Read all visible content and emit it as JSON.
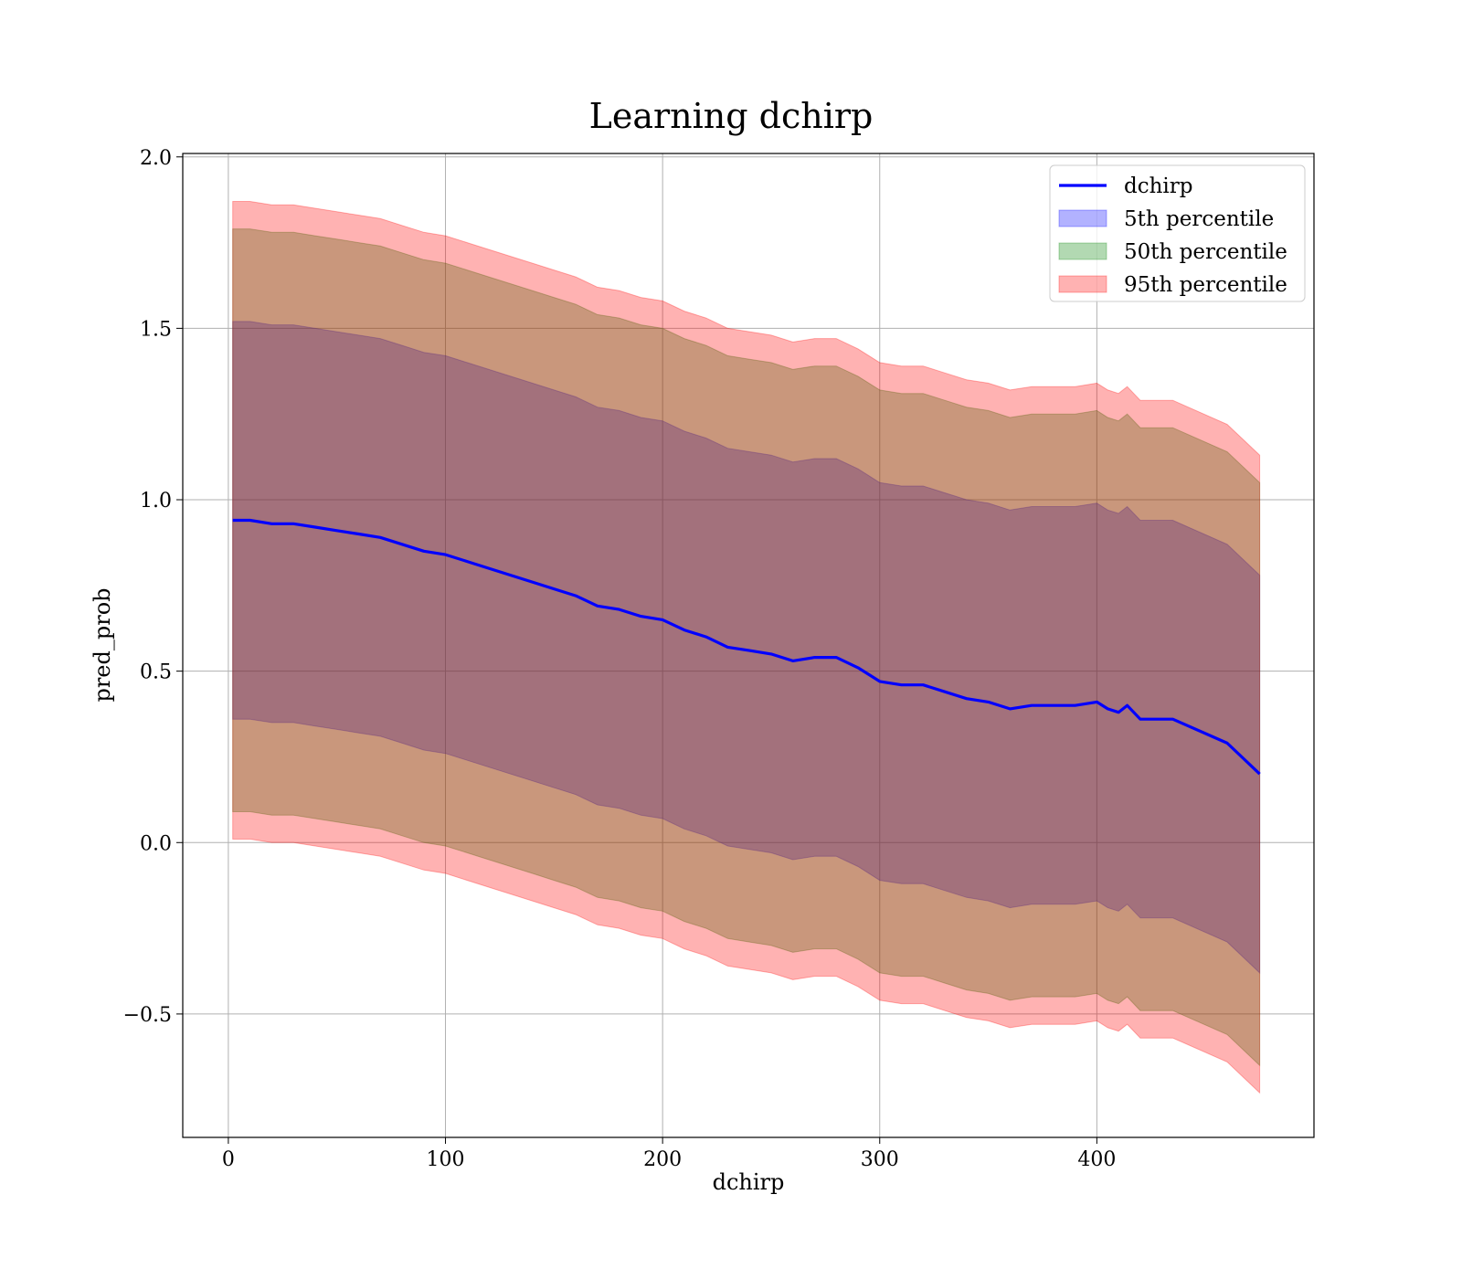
{
  "chart_data": {
    "type": "line",
    "title": "Learning dchirp",
    "xlabel": "dchirp",
    "ylabel": "pred_prob",
    "xlim": [
      -21,
      500
    ],
    "ylim": [
      -0.86,
      2.01
    ],
    "xticks": [
      0,
      100,
      200,
      300,
      400
    ],
    "xtick_labels": [
      "0",
      "100",
      "200",
      "300",
      "400"
    ],
    "yticks": [
      -0.5,
      0.0,
      0.5,
      1.0,
      1.5,
      2.0
    ],
    "ytick_labels": [
      "−0.5",
      "0.0",
      "0.5",
      "1.0",
      "1.5",
      "2.0"
    ],
    "grid": true,
    "legend_position": "top-right",
    "x": [
      2,
      10,
      20,
      30,
      40,
      50,
      60,
      70,
      80,
      90,
      100,
      110,
      120,
      130,
      140,
      150,
      160,
      170,
      180,
      190,
      200,
      210,
      220,
      230,
      240,
      250,
      260,
      270,
      280,
      290,
      300,
      310,
      320,
      330,
      340,
      350,
      360,
      370,
      380,
      390,
      400,
      405,
      410,
      414,
      420,
      425,
      435,
      460,
      475
    ],
    "series": [
      {
        "name": "dchirp",
        "kind": "line",
        "color": "#0000ff",
        "values": [
          0.94,
          0.94,
          0.93,
          0.93,
          0.92,
          0.91,
          0.9,
          0.89,
          0.87,
          0.85,
          0.84,
          0.82,
          0.8,
          0.78,
          0.76,
          0.74,
          0.72,
          0.69,
          0.68,
          0.66,
          0.65,
          0.62,
          0.6,
          0.57,
          0.56,
          0.55,
          0.53,
          0.54,
          0.54,
          0.51,
          0.47,
          0.46,
          0.46,
          0.44,
          0.42,
          0.41,
          0.39,
          0.4,
          0.4,
          0.4,
          0.41,
          0.39,
          0.38,
          0.4,
          0.36,
          0.36,
          0.36,
          0.29,
          0.2
        ]
      },
      {
        "name": "5th percentile",
        "kind": "band",
        "color": "#0000ff",
        "opacity": 0.3,
        "lower": [
          0.36,
          0.36,
          0.35,
          0.35,
          0.34,
          0.33,
          0.32,
          0.31,
          0.29,
          0.27,
          0.26,
          0.24,
          0.22,
          0.2,
          0.18,
          0.16,
          0.14,
          0.11,
          0.1,
          0.08,
          0.07,
          0.04,
          0.02,
          -0.01,
          -0.02,
          -0.03,
          -0.05,
          -0.04,
          -0.04,
          -0.07,
          -0.11,
          -0.12,
          -0.12,
          -0.14,
          -0.16,
          -0.17,
          -0.19,
          -0.18,
          -0.18,
          -0.18,
          -0.17,
          -0.19,
          -0.2,
          -0.18,
          -0.22,
          -0.22,
          -0.22,
          -0.29,
          -0.38
        ],
        "upper": [
          1.52,
          1.52,
          1.51,
          1.51,
          1.5,
          1.49,
          1.48,
          1.47,
          1.45,
          1.43,
          1.42,
          1.4,
          1.38,
          1.36,
          1.34,
          1.32,
          1.3,
          1.27,
          1.26,
          1.24,
          1.23,
          1.2,
          1.18,
          1.15,
          1.14,
          1.13,
          1.11,
          1.12,
          1.12,
          1.09,
          1.05,
          1.04,
          1.04,
          1.02,
          1.0,
          0.99,
          0.97,
          0.98,
          0.98,
          0.98,
          0.99,
          0.97,
          0.96,
          0.98,
          0.94,
          0.94,
          0.94,
          0.87,
          0.78
        ]
      },
      {
        "name": "50th percentile",
        "kind": "band",
        "color": "#008000",
        "opacity": 0.3,
        "lower": [
          0.09,
          0.09,
          0.08,
          0.08,
          0.07,
          0.06,
          0.05,
          0.04,
          0.02,
          0.0,
          -0.01,
          -0.03,
          -0.05,
          -0.07,
          -0.09,
          -0.11,
          -0.13,
          -0.16,
          -0.17,
          -0.19,
          -0.2,
          -0.23,
          -0.25,
          -0.28,
          -0.29,
          -0.3,
          -0.32,
          -0.31,
          -0.31,
          -0.34,
          -0.38,
          -0.39,
          -0.39,
          -0.41,
          -0.43,
          -0.44,
          -0.46,
          -0.45,
          -0.45,
          -0.45,
          -0.44,
          -0.46,
          -0.47,
          -0.45,
          -0.49,
          -0.49,
          -0.49,
          -0.56,
          -0.65
        ],
        "upper": [
          1.79,
          1.79,
          1.78,
          1.78,
          1.77,
          1.76,
          1.75,
          1.74,
          1.72,
          1.7,
          1.69,
          1.67,
          1.65,
          1.63,
          1.61,
          1.59,
          1.57,
          1.54,
          1.53,
          1.51,
          1.5,
          1.47,
          1.45,
          1.42,
          1.41,
          1.4,
          1.38,
          1.39,
          1.39,
          1.36,
          1.32,
          1.31,
          1.31,
          1.29,
          1.27,
          1.26,
          1.24,
          1.25,
          1.25,
          1.25,
          1.26,
          1.24,
          1.23,
          1.25,
          1.21,
          1.21,
          1.21,
          1.14,
          1.05
        ]
      },
      {
        "name": "95th percentile",
        "kind": "band",
        "color": "#ff0000",
        "opacity": 0.3,
        "lower": [
          0.01,
          0.01,
          0.0,
          0.0,
          -0.01,
          -0.02,
          -0.03,
          -0.04,
          -0.06,
          -0.08,
          -0.09,
          -0.11,
          -0.13,
          -0.15,
          -0.17,
          -0.19,
          -0.21,
          -0.24,
          -0.25,
          -0.27,
          -0.28,
          -0.31,
          -0.33,
          -0.36,
          -0.37,
          -0.38,
          -0.4,
          -0.39,
          -0.39,
          -0.42,
          -0.46,
          -0.47,
          -0.47,
          -0.49,
          -0.51,
          -0.52,
          -0.54,
          -0.53,
          -0.53,
          -0.53,
          -0.52,
          -0.54,
          -0.55,
          -0.53,
          -0.57,
          -0.57,
          -0.57,
          -0.64,
          -0.73
        ],
        "upper": [
          1.87,
          1.87,
          1.86,
          1.86,
          1.85,
          1.84,
          1.83,
          1.82,
          1.8,
          1.78,
          1.77,
          1.75,
          1.73,
          1.71,
          1.69,
          1.67,
          1.65,
          1.62,
          1.61,
          1.59,
          1.58,
          1.55,
          1.53,
          1.5,
          1.49,
          1.48,
          1.46,
          1.47,
          1.47,
          1.44,
          1.4,
          1.39,
          1.39,
          1.37,
          1.35,
          1.34,
          1.32,
          1.33,
          1.33,
          1.33,
          1.34,
          1.32,
          1.31,
          1.33,
          1.29,
          1.29,
          1.29,
          1.22,
          1.13
        ]
      }
    ]
  }
}
